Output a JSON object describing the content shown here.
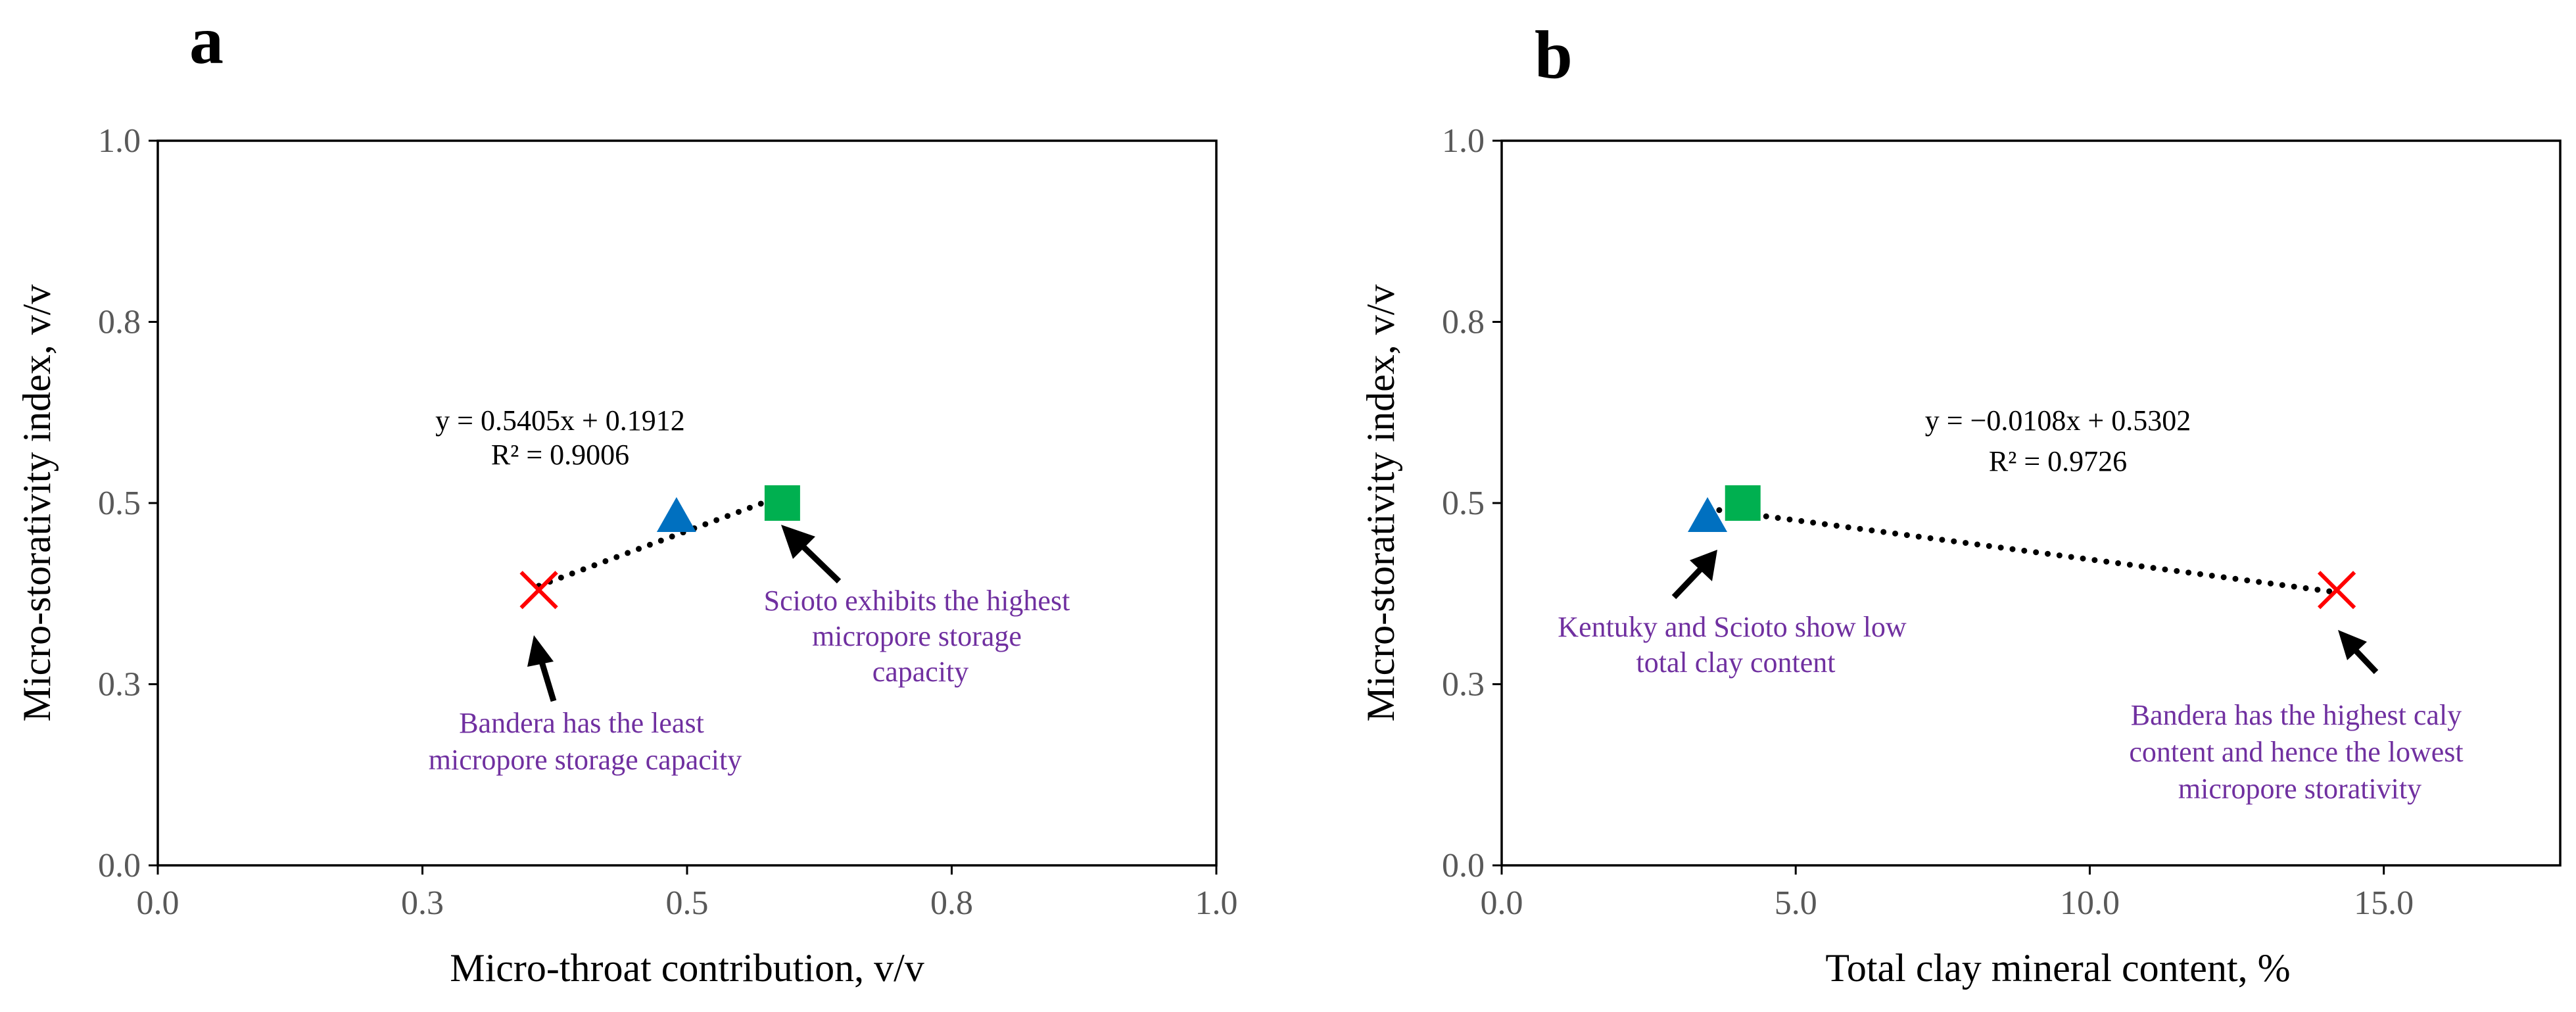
{
  "chart_data": [
    {
      "panel": "a",
      "type": "scatter",
      "title": "",
      "xlabel": "Micro-throat contribution, v/v",
      "ylabel": "Micro-storativity index, v/v",
      "xlim": [
        0,
        1.0
      ],
      "ylim": [
        0,
        1.0
      ],
      "xticks": [
        0.0,
        0.25,
        0.5,
        0.75,
        1.0
      ],
      "xtick_labels": [
        "0.0",
        "0.3",
        "0.5",
        "0.8",
        "1.0"
      ],
      "yticks": [
        0.0,
        0.25,
        0.5,
        0.75,
        1.0
      ],
      "ytick_labels": [
        "0.0",
        "0.3",
        "0.5",
        "0.8",
        "1.0"
      ],
      "points": [
        {
          "name": "Bandera",
          "marker": "x",
          "color": "#FF0000",
          "x": 0.36,
          "y": 0.38
        },
        {
          "name": "Kentuky",
          "marker": "triangle",
          "color": "#0070C0",
          "x": 0.49,
          "y": 0.48
        },
        {
          "name": "Scioto",
          "marker": "square",
          "color": "#00B050",
          "x": 0.59,
          "y": 0.5
        }
      ],
      "trendline": {
        "slope": 0.5405,
        "intercept": 0.1912,
        "x_range": [
          0.36,
          0.58
        ]
      },
      "equation": "y = 0.5405x + 0.1912",
      "r2": "R² = 0.9006",
      "annotations": [
        {
          "lines": [
            "Scioto exhibits the highest",
            "micropore storage",
            "capacity"
          ],
          "target": "Scioto"
        },
        {
          "lines": [
            "Bandera has the least",
            "micropore storage capacity"
          ],
          "target": "Bandera"
        }
      ]
    },
    {
      "panel": "b",
      "type": "scatter",
      "title": "",
      "xlabel": "Total clay mineral content, %",
      "ylabel": "Micro-storativity index, v/v",
      "xlim": [
        0,
        18
      ],
      "ylim": [
        0,
        1.0
      ],
      "xticks": [
        0.0,
        5.0,
        10.0,
        15.0
      ],
      "xtick_labels": [
        "0.0",
        "5.0",
        "10.0",
        "15.0"
      ],
      "yticks": [
        0.0,
        0.25,
        0.5,
        0.75,
        1.0
      ],
      "ytick_labels": [
        "0.0",
        "0.3",
        "0.5",
        "0.8",
        "1.0"
      ],
      "points": [
        {
          "name": "Bandera",
          "marker": "x",
          "color": "#FF0000",
          "x": 14.2,
          "y": 0.38
        },
        {
          "name": "Kentuky",
          "marker": "triangle",
          "color": "#0070C0",
          "x": 3.5,
          "y": 0.48
        },
        {
          "name": "Scioto",
          "marker": "square",
          "color": "#00B050",
          "x": 4.1,
          "y": 0.5
        }
      ],
      "trendline": {
        "slope": -0.0108,
        "intercept": 0.5302,
        "x_range": [
          3.5,
          14.2
        ]
      },
      "equation": "y = −0.0108x + 0.5302",
      "r2": "R² = 0.9726",
      "annotations": [
        {
          "lines": [
            "Kentuky and Scioto show low",
            "total clay content"
          ],
          "target": "Kentuky"
        },
        {
          "lines": [
            "Bandera has the highest caly",
            "content and hence the lowest",
            "micropore storativity"
          ],
          "target": "Bandera"
        }
      ]
    }
  ]
}
